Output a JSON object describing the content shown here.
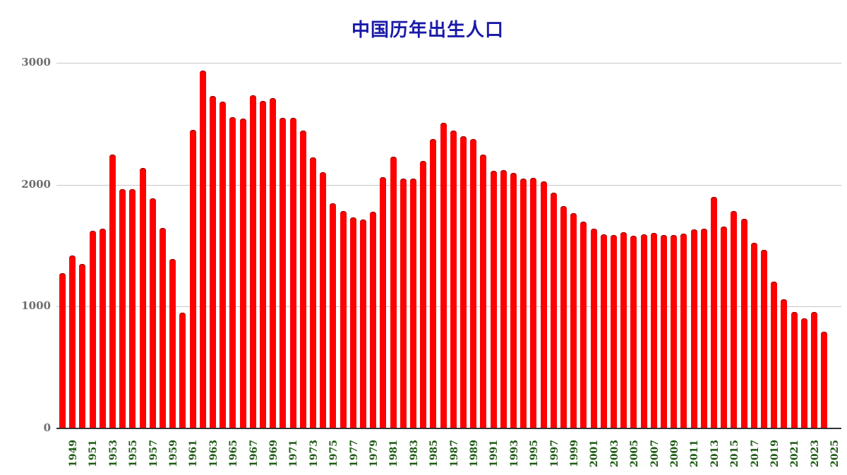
{
  "title": "中国历年出生人口",
  "colors": {
    "bar": "#ff0000",
    "title": "#1a1aa8",
    "xlabel": "#1e5a14",
    "ylabel": "#6e6e6e",
    "grid": "#c8c8c8"
  },
  "yaxis": {
    "ticks": [
      "0",
      "1000",
      "2000",
      "3000"
    ]
  },
  "chart_data": {
    "type": "bar",
    "title": "中国历年出生人口",
    "xlabel": "",
    "ylabel": "",
    "ylim": [
      0,
      3000
    ],
    "grid": true,
    "legend": null,
    "yticks": [
      0,
      1000,
      2000,
      3000
    ],
    "categories": [
      "1949",
      "1950",
      "1951",
      "1952",
      "1953",
      "1954",
      "1955",
      "1956",
      "1957",
      "1958",
      "1959",
      "1960",
      "1961",
      "1962",
      "1963",
      "1964",
      "1965",
      "1966",
      "1967",
      "1968",
      "1969",
      "1970",
      "1971",
      "1972",
      "1973",
      "1974",
      "1975",
      "1976",
      "1977",
      "1978",
      "1979",
      "1980",
      "1981",
      "1982",
      "1983",
      "1984",
      "1985",
      "1986",
      "1987",
      "1988",
      "1989",
      "1990",
      "1991",
      "1992",
      "1993",
      "1994",
      "1995",
      "1996",
      "1997",
      "1998",
      "1999",
      "2000",
      "2001",
      "2002",
      "2003",
      "2004",
      "2005",
      "2006",
      "2007",
      "2008",
      "2009",
      "2010",
      "2011",
      "2012",
      "2013",
      "2014",
      "2015",
      "2016",
      "2017",
      "2018",
      "2019",
      "2020",
      "2021",
      "2022",
      "2023",
      "2024",
      "2025"
    ],
    "values": [
      1275,
      1419,
      1349,
      1622,
      1637,
      2245,
      1965,
      1961,
      2138,
      1889,
      1647,
      1389,
      949,
      2451,
      2934,
      2729,
      2679,
      2554,
      2543,
      2731,
      2690,
      2710,
      2551,
      2550,
      2447,
      2226,
      2102,
      1849,
      1783,
      1733,
      1715,
      1776,
      2064,
      2230,
      2052,
      2050,
      2196,
      2374,
      2508,
      2445,
      2396,
      2374,
      2250,
      2113,
      2120,
      2098,
      2052,
      2057,
      2028,
      1934,
      1827,
      1765,
      1696,
      1641,
      1594,
      1588,
      1612,
      1581,
      1591,
      1604,
      1587,
      1588,
      1600,
      1635,
      1640,
      1897,
      1655,
      1786,
      1723,
      1523,
      1465,
      1202,
      1062,
      956,
      902,
      954,
      792
    ],
    "xtick_labels": [
      "1949",
      "1951",
      "1953",
      "1955",
      "1957",
      "1959",
      "1961",
      "1963",
      "1965",
      "1967",
      "1969",
      "1971",
      "1973",
      "1975",
      "1977",
      "1979",
      "1981",
      "1983",
      "1985",
      "1987",
      "1989",
      "1991",
      "1993",
      "1995",
      "1997",
      "1999",
      "2001",
      "2003",
      "2005",
      "2007",
      "2009",
      "2011",
      "2013",
      "2015",
      "2017",
      "2019",
      "2021",
      "2023",
      "2025"
    ]
  }
}
